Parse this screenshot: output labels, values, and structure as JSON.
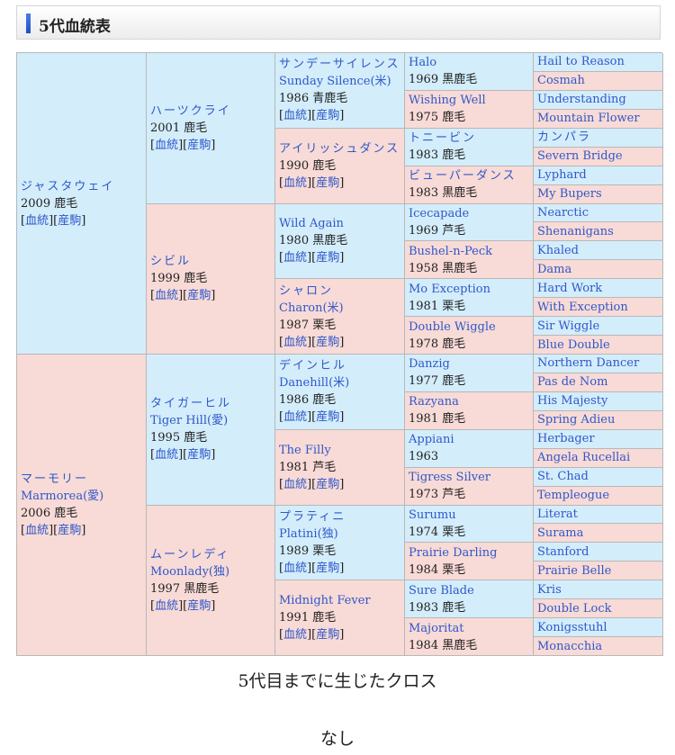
{
  "header": {
    "title": "5代血統表"
  },
  "link_labels": {
    "pedigree": "血統",
    "offspring": "産駒"
  },
  "colors": {
    "male": "#d3edfb",
    "female": "#f8dad6",
    "link": "#2f58c9"
  },
  "generations": [
    [
      {
        "kana": "ジャスタウェイ",
        "info": "2009 鹿毛",
        "links": true
      },
      {
        "kana": "マーモリー",
        "name": "Marmorea(愛)",
        "info": "2006 鹿毛",
        "links": true
      }
    ],
    [
      {
        "kana": "ハーツクライ",
        "info": "2001 鹿毛",
        "links": true
      },
      {
        "kana": "シビル",
        "info": "1999 鹿毛",
        "links": true
      },
      {
        "kana": "タイガーヒル",
        "name": "Tiger Hill(愛)",
        "info": "1995 鹿毛",
        "links": true
      },
      {
        "kana": "ムーンレディ",
        "name": "Moonlady(独)",
        "info": "1997 黒鹿毛",
        "links": true
      }
    ],
    [
      {
        "kana": "サンデーサイレンス",
        "name": "Sunday Silence(米)",
        "info": "1986 青鹿毛",
        "links": true
      },
      {
        "kana": "アイリッシュダンス",
        "info": "1990 鹿毛",
        "links": true
      },
      {
        "name": "Wild Again",
        "info": "1980 黒鹿毛",
        "links": true
      },
      {
        "kana": "シャロン",
        "name": "Charon(米)",
        "info": "1987 栗毛",
        "links": true
      },
      {
        "kana": "デインヒル",
        "name": "Danehill(米)",
        "info": "1986 鹿毛",
        "links": true
      },
      {
        "name": "The Filly",
        "info": "1981 芦毛",
        "links": true
      },
      {
        "kana": "プラティニ",
        "name": "Platini(独)",
        "info": "1989 栗毛",
        "links": true
      },
      {
        "name": "Midnight Fever",
        "info": "1991 鹿毛",
        "links": true
      }
    ],
    [
      {
        "name": "Halo",
        "info": "1969 黒鹿毛"
      },
      {
        "name": "Wishing Well",
        "info": "1975 鹿毛"
      },
      {
        "kana": "トニービン",
        "info": "1983 鹿毛"
      },
      {
        "kana": "ビューパーダンス",
        "info": "1983 黒鹿毛"
      },
      {
        "name": "Icecapade",
        "info": "1969 芦毛"
      },
      {
        "name": "Bushel-n-Peck",
        "info": "1958 黒鹿毛"
      },
      {
        "name": "Mo Exception",
        "info": "1981 栗毛"
      },
      {
        "name": "Double Wiggle",
        "info": "1978 鹿毛"
      },
      {
        "name": "Danzig",
        "info": "1977 鹿毛"
      },
      {
        "name": "Razyana",
        "info": "1981 鹿毛"
      },
      {
        "name": "Appiani",
        "info": "1963"
      },
      {
        "name": "Tigress Silver",
        "info": "1973 芦毛"
      },
      {
        "name": "Surumu",
        "info": "1974 栗毛"
      },
      {
        "name": "Prairie Darling",
        "info": "1984 栗毛"
      },
      {
        "name": "Sure Blade",
        "info": "1983 鹿毛"
      },
      {
        "name": "Majoritat",
        "info": "1984 黒鹿毛"
      }
    ],
    [
      {
        "name": "Hail to Reason"
      },
      {
        "name": "Cosmah"
      },
      {
        "name": "Understanding"
      },
      {
        "name": "Mountain Flower"
      },
      {
        "kana": "カンパラ"
      },
      {
        "name": "Severn Bridge"
      },
      {
        "name": "Lyphard"
      },
      {
        "name": "My Bupers"
      },
      {
        "name": "Nearctic"
      },
      {
        "name": "Shenanigans"
      },
      {
        "name": "Khaled"
      },
      {
        "name": "Dama"
      },
      {
        "name": "Hard Work"
      },
      {
        "name": "With Exception"
      },
      {
        "name": "Sir Wiggle"
      },
      {
        "name": "Blue Double"
      },
      {
        "name": "Northern Dancer"
      },
      {
        "name": "Pas de Nom"
      },
      {
        "name": "His Majesty"
      },
      {
        "name": "Spring Adieu"
      },
      {
        "name": "Herbager"
      },
      {
        "name": "Angela Rucellai"
      },
      {
        "name": "St. Chad"
      },
      {
        "name": "Templeogue"
      },
      {
        "name": "Literat"
      },
      {
        "name": "Surama"
      },
      {
        "name": "Stanford"
      },
      {
        "name": "Prairie Belle"
      },
      {
        "name": "Kris"
      },
      {
        "name": "Double Lock"
      },
      {
        "name": "Konigsstuhl"
      },
      {
        "name": "Monacchia"
      }
    ]
  ],
  "cross": {
    "title": "5代目までに生じたクロス",
    "value": "なし"
  }
}
